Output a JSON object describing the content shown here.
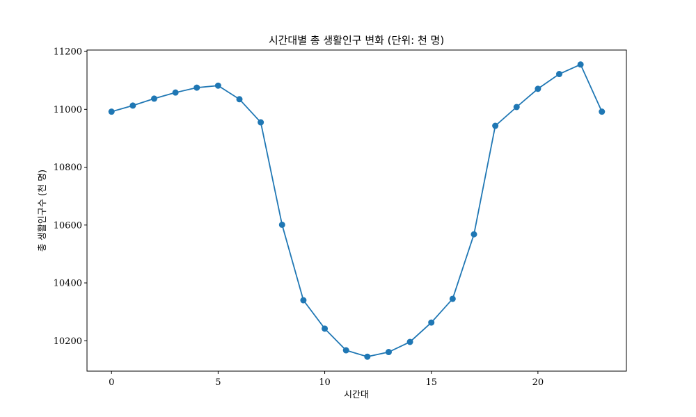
{
  "chart_data": {
    "type": "line",
    "title": "시간대별 총 생활인구 변화 (단위: 천 명)",
    "xlabel": "시간대",
    "ylabel": "총 생활인구수 (천 명)",
    "x": [
      0,
      1,
      2,
      3,
      4,
      5,
      6,
      7,
      8,
      9,
      10,
      11,
      12,
      13,
      14,
      15,
      16,
      17,
      18,
      19,
      20,
      21,
      22,
      23
    ],
    "series": [
      {
        "values": [
          10992,
          11013,
          11037,
          11058,
          11075,
          11082,
          11035,
          10955,
          10601,
          10340,
          10242,
          10167,
          10145,
          10161,
          10196,
          10263,
          10345,
          10568,
          10943,
          11008,
          11071,
          11122,
          11155,
          10992
        ]
      }
    ],
    "xlim": [
      -1.15,
      24.15
    ],
    "ylim": [
      10095,
      11205
    ],
    "xticks": [
      0,
      5,
      10,
      15,
      20
    ],
    "yticks": [
      10200,
      10400,
      10600,
      10800,
      11000,
      11200
    ],
    "grid": false,
    "markers": true,
    "colors": {
      "series": "#1f77b4"
    }
  }
}
